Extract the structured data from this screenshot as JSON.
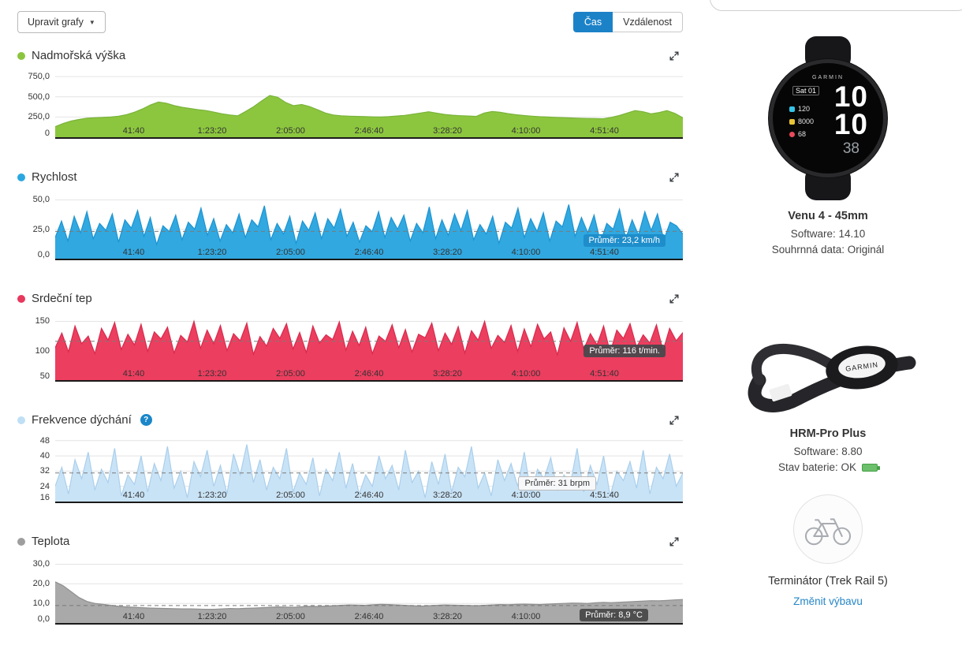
{
  "toolbar": {
    "edit_charts_label": "Upravit grafy",
    "caret": "▼",
    "toggle_time": "Čas",
    "toggle_distance": "Vzdálenost"
  },
  "icons": {
    "help": "?"
  },
  "x_ticks": [
    "41:40",
    "1:23:20",
    "2:05:00",
    "2:46:40",
    "3:28:20",
    "4:10:00",
    "4:51:40"
  ],
  "charts": [
    {
      "type": "area",
      "title": "Nadmořská výška",
      "dot_color": "#8bc53f",
      "fill": "#8cc63e",
      "stroke": "#79b33a",
      "ylim": [
        0,
        800
      ],
      "yticks": [
        {
          "v": 0,
          "label": "0"
        },
        {
          "v": 250,
          "label": "250,0"
        },
        {
          "v": 500,
          "label": "500,0"
        },
        {
          "v": 750,
          "label": "750,0"
        }
      ],
      "avg": null,
      "avg_label": null,
      "values": [
        130,
        170,
        200,
        220,
        235,
        240,
        245,
        250,
        260,
        280,
        310,
        350,
        400,
        435,
        420,
        390,
        370,
        355,
        340,
        330,
        310,
        290,
        275,
        265,
        320,
        380,
        450,
        515,
        495,
        430,
        390,
        405,
        380,
        340,
        300,
        275,
        265,
        260,
        258,
        255,
        252,
        250,
        255,
        262,
        270,
        285,
        300,
        315,
        298,
        282,
        272,
        266,
        262,
        258,
        300,
        318,
        308,
        292,
        278,
        268,
        260,
        254,
        250,
        246,
        242,
        238,
        234,
        232,
        230,
        228,
        246,
        268,
        300,
        330,
        315,
        290,
        305,
        330,
        295,
        240
      ]
    },
    {
      "type": "area",
      "title": "Rychlost",
      "dot_color": "#2aa7e0",
      "fill": "#31a8e0",
      "stroke": "#1d94d2",
      "ylim": [
        0,
        55
      ],
      "yticks": [
        {
          "v": 0,
          "label": "0,0"
        },
        {
          "v": 25,
          "label": "25,0"
        },
        {
          "v": 50,
          "label": "50,0"
        }
      ],
      "avg": 23.2,
      "avg_label": "Průměr: 23,2 km/h",
      "avg_theme": "blue",
      "avg_right": 22,
      "values": [
        18,
        32,
        15,
        36,
        22,
        40,
        17,
        30,
        24,
        38,
        14,
        33,
        26,
        41,
        19,
        35,
        12,
        28,
        23,
        37,
        16,
        31,
        25,
        43,
        20,
        34,
        15,
        29,
        22,
        38,
        18,
        33,
        27,
        45,
        16,
        30,
        21,
        36,
        13,
        32,
        24,
        39,
        17,
        34,
        26,
        42,
        19,
        31,
        14,
        28,
        23,
        40,
        18,
        35,
        25,
        37,
        15,
        30,
        22,
        44,
        17,
        33,
        20,
        38,
        24,
        41,
        16,
        29,
        21,
        36,
        13,
        31,
        26,
        43,
        18,
        34,
        23,
        39,
        15,
        32,
        27,
        46,
        19,
        35,
        22,
        37,
        14,
        30,
        25,
        42,
        17,
        33,
        20,
        40,
        24,
        38,
        16,
        31,
        28,
        21
      ]
    },
    {
      "type": "area",
      "title": "Srdeční tep",
      "dot_color": "#e8385e",
      "fill": "#ec3e5f",
      "stroke": "#d82b4e",
      "ylim": [
        50,
        160
      ],
      "yticks": [
        {
          "v": 50,
          "label": "50"
        },
        {
          "v": 100,
          "label": "100"
        },
        {
          "v": 150,
          "label": "150"
        }
      ],
      "avg": 116,
      "avg_label": "Průměr: 116 t/min.",
      "avg_theme": "dark",
      "avg_right": 22,
      "values": [
        105,
        130,
        98,
        142,
        112,
        125,
        95,
        138,
        118,
        148,
        102,
        128,
        110,
        145,
        99,
        132,
        120,
        140,
        96,
        126,
        115,
        150,
        104,
        135,
        112,
        143,
        100,
        129,
        117,
        147,
        94,
        124,
        108,
        138,
        121,
        146,
        103,
        131,
        97,
        142,
        113,
        127,
        119,
        149,
        101,
        133,
        109,
        140,
        95,
        125,
        116,
        144,
        105,
        136,
        98,
        128,
        122,
        147,
        100,
        130,
        111,
        141,
        96,
        134,
        118,
        150,
        104,
        126,
        114,
        143,
        99,
        137,
        107,
        145,
        120,
        132,
        93,
        139,
        116,
        148,
        102,
        129,
        110,
        142,
        97,
        135,
        121,
        146,
        106,
        127,
        113,
        144,
        100,
        138,
        117,
        131
      ]
    },
    {
      "type": "area",
      "title": "Frekvence dýchání",
      "has_help": true,
      "dot_color": "#bfdff5",
      "fill": "#c9e3f6",
      "stroke": "#aacfec",
      "ylim": [
        16,
        50
      ],
      "yticks": [
        {
          "v": 16,
          "label": "16"
        },
        {
          "v": 24,
          "label": "24"
        },
        {
          "v": 32,
          "label": "32"
        },
        {
          "v": 40,
          "label": "40"
        },
        {
          "v": 48,
          "label": "48"
        }
      ],
      "avg": 31,
      "avg_label": "Průměr: 31 brpm",
      "avg_theme": "light",
      "avg_right": 110,
      "values": [
        24,
        34,
        20,
        38,
        28,
        42,
        22,
        33,
        26,
        44,
        19,
        30,
        25,
        40,
        21,
        36,
        27,
        45,
        23,
        32,
        18,
        37,
        29,
        43,
        24,
        35,
        20,
        41,
        30,
        46,
        26,
        38,
        22,
        34,
        28,
        44,
        21,
        31,
        25,
        39,
        19,
        33,
        27,
        42,
        23,
        36,
        20,
        30,
        24,
        40,
        28,
        35,
        22,
        43,
        26,
        32,
        18,
        37,
        25,
        41,
        21,
        34,
        29,
        45,
        23,
        31,
        19,
        38,
        27,
        36,
        24,
        42,
        20,
        33,
        28,
        39,
        22,
        30,
        26,
        44,
        21,
        35,
        25,
        40,
        19,
        32,
        27,
        37,
        23,
        43,
        20,
        34,
        28,
        41,
        24,
        31
      ]
    },
    {
      "type": "area",
      "title": "Teplota",
      "dot_color": "#9e9e9e",
      "fill": "#a9a9a9",
      "stroke": "#8f8f8f",
      "ylim": [
        0,
        33
      ],
      "yticks": [
        {
          "v": 0,
          "label": "0,0"
        },
        {
          "v": 10,
          "label": "10,0"
        },
        {
          "v": 20,
          "label": "20,0"
        },
        {
          "v": 30,
          "label": "30,0"
        }
      ],
      "avg": 8.9,
      "avg_label": "Průměr: 8,9 °C",
      "avg_theme": "gray",
      "avg_right": 44,
      "values": [
        21,
        19,
        16,
        13,
        11,
        10,
        9.5,
        9,
        8.5,
        8.2,
        8,
        7.8,
        7.6,
        7.5,
        7.4,
        7.3,
        7.2,
        7.2,
        7.1,
        7,
        7,
        7.2,
        7.4,
        7.3,
        7.5,
        7.6,
        7.8,
        8,
        8.2,
        8.1,
        8,
        8.3,
        8.5,
        8.4,
        8.6,
        8.8,
        9,
        9.2,
        9.1,
        9,
        9.3,
        9.5,
        9.4,
        9.2,
        9,
        8.8,
        8.6,
        8.8,
        9,
        9.2,
        9.1,
        9,
        8.9,
        8.8,
        9,
        9.2,
        9.4,
        9.3,
        9.5,
        9.6,
        9.5,
        9.4,
        9.6,
        9.8,
        10,
        10.2,
        10.1,
        10,
        10.3,
        10.5,
        10.4,
        10.6,
        10.8,
        11,
        11.2,
        11.4,
        11.3,
        11.5,
        11.8,
        12
      ]
    }
  ],
  "sidebar": {
    "watch_face": {
      "brand": "GARMIN",
      "date": "Sat 01",
      "big1": "10",
      "big2": "10",
      "small": "38",
      "stat1": "120",
      "stat2": "8000",
      "stat3": "68"
    },
    "strap_brand": "GARMIN",
    "devices": [
      {
        "name": "Venu 4 - 45mm",
        "lines": [
          "Software: 14.10",
          "Souhrnná data: Originál"
        ]
      },
      {
        "name": "HRM-Pro Plus",
        "lines": [
          "Software: 8.80"
        ],
        "battery_line": "Stav baterie: OK"
      },
      {
        "name": "Terminátor (Trek Rail 5)",
        "link": "Změnit výbavu"
      }
    ]
  }
}
